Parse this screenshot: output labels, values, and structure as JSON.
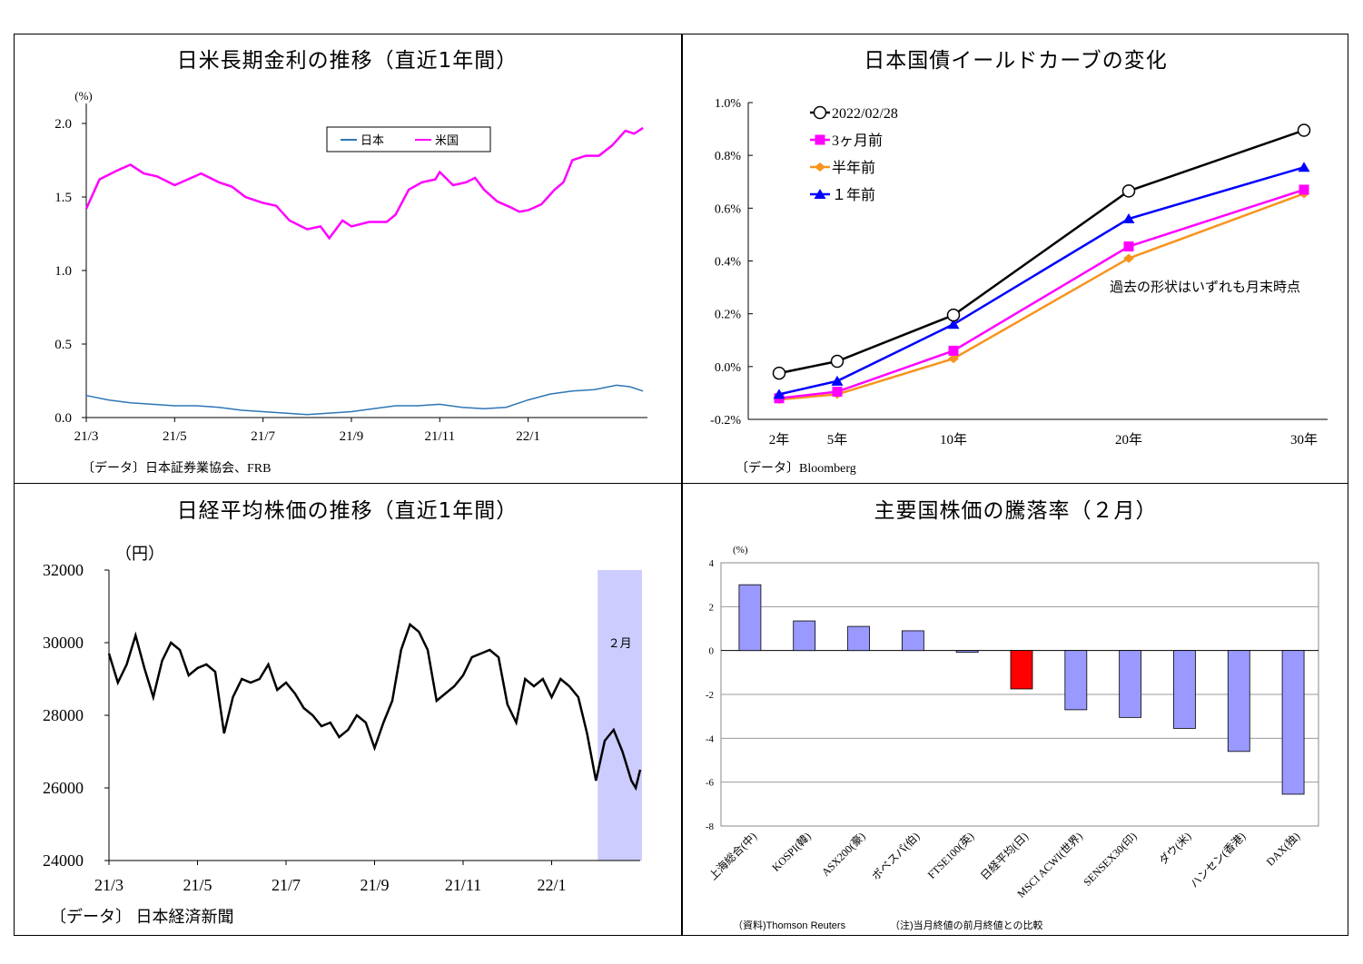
{
  "panels": {
    "tl": {
      "title": "日米長期金利の推移（直近1年間）",
      "source": "〔データ〕日本証券業協会、FRB"
    },
    "tr": {
      "title": "日本国債イールドカーブの変化",
      "source": "〔データ〕Bloomberg",
      "note": "過去の形状はいずれも月末時点"
    },
    "bl": {
      "title": "日経平均株価の推移（直近1年間）",
      "source": "〔データ〕 日本経済新聞",
      "band_label": "２月"
    },
    "br": {
      "title": "主要国株価の騰落率（２月）",
      "source": "（資料)Thomson Reuters",
      "note": "（注)当月終値の前月終値との比較"
    }
  },
  "chart_data": [
    {
      "type": "line",
      "title": "日米長期金利の推移（直近1年間）",
      "ylabel": "(%)",
      "ylim": [
        0,
        2.0
      ],
      "yticks": [
        "0.0",
        "0.5",
        "1.0",
        "1.5",
        "2.0"
      ],
      "xticks": [
        "21/3",
        "21/5",
        "21/7",
        "21/9",
        "21/11",
        "22/1"
      ],
      "legend": "top-right",
      "colors": {
        "日本": "#2e75b6",
        "米国": "#ff00ff"
      },
      "series": [
        {
          "name": "日本",
          "points": [
            [
              0,
              0.15
            ],
            [
              0.5,
              0.12
            ],
            [
              1,
              0.1
            ],
            [
              1.5,
              0.09
            ],
            [
              2,
              0.08
            ],
            [
              2.5,
              0.08
            ],
            [
              3,
              0.07
            ],
            [
              3.5,
              0.05
            ],
            [
              4,
              0.04
            ],
            [
              4.5,
              0.03
            ],
            [
              5,
              0.02
            ],
            [
              5.5,
              0.03
            ],
            [
              6,
              0.04
            ],
            [
              6.5,
              0.06
            ],
            [
              7,
              0.08
            ],
            [
              7.5,
              0.08
            ],
            [
              8,
              0.09
            ],
            [
              8.5,
              0.07
            ],
            [
              9,
              0.06
            ],
            [
              9.5,
              0.07
            ],
            [
              10,
              0.12
            ],
            [
              10.5,
              0.16
            ],
            [
              11,
              0.18
            ],
            [
              11.5,
              0.19
            ],
            [
              12,
              0.22
            ],
            [
              12.3,
              0.21
            ],
            [
              12.6,
              0.18
            ]
          ]
        },
        {
          "name": "米国",
          "points": [
            [
              0,
              1.42
            ],
            [
              0.3,
              1.62
            ],
            [
              0.7,
              1.68
            ],
            [
              1,
              1.72
            ],
            [
              1.3,
              1.66
            ],
            [
              1.6,
              1.64
            ],
            [
              2,
              1.58
            ],
            [
              2.3,
              1.62
            ],
            [
              2.6,
              1.66
            ],
            [
              3,
              1.6
            ],
            [
              3.3,
              1.57
            ],
            [
              3.6,
              1.5
            ],
            [
              4,
              1.46
            ],
            [
              4.3,
              1.44
            ],
            [
              4.6,
              1.34
            ],
            [
              5,
              1.28
            ],
            [
              5.3,
              1.3
            ],
            [
              5.5,
              1.22
            ],
            [
              5.8,
              1.34
            ],
            [
              6,
              1.3
            ],
            [
              6.4,
              1.33
            ],
            [
              6.8,
              1.33
            ],
            [
              7,
              1.38
            ],
            [
              7.3,
              1.55
            ],
            [
              7.6,
              1.6
            ],
            [
              7.9,
              1.62
            ],
            [
              8,
              1.67
            ],
            [
              8.3,
              1.58
            ],
            [
              8.6,
              1.6
            ],
            [
              8.8,
              1.63
            ],
            [
              9,
              1.55
            ],
            [
              9.3,
              1.47
            ],
            [
              9.6,
              1.43
            ],
            [
              9.8,
              1.4
            ],
            [
              10,
              1.41
            ],
            [
              10.3,
              1.45
            ],
            [
              10.6,
              1.55
            ],
            [
              10.8,
              1.6
            ],
            [
              11,
              1.75
            ],
            [
              11.3,
              1.78
            ],
            [
              11.6,
              1.78
            ],
            [
              11.9,
              1.85
            ],
            [
              12.2,
              1.95
            ],
            [
              12.4,
              1.93
            ],
            [
              12.6,
              1.97
            ]
          ]
        }
      ],
      "x_domain": [
        0,
        12.7
      ]
    },
    {
      "type": "line",
      "title": "日本国債イールドカーブの変化",
      "ylim": [
        -0.2,
        1.0
      ],
      "yticks": [
        "-0.2%",
        "0.0%",
        "0.2%",
        "0.4%",
        "0.6%",
        "0.8%",
        "1.0%"
      ],
      "categories": [
        "2年",
        "5年",
        "10年",
        "20年",
        "30年"
      ],
      "x": [
        2,
        5,
        10,
        20,
        30
      ],
      "legend": "top-left",
      "series": [
        {
          "name": "2022/02/28",
          "color": "#000000",
          "marker": "circle",
          "values": [
            -0.025,
            0.02,
            0.195,
            0.665,
            0.895
          ]
        },
        {
          "name": "3ヶ月前",
          "color": "#ff00ff",
          "marker": "square",
          "values": [
            -0.12,
            -0.095,
            0.06,
            0.455,
            0.67
          ]
        },
        {
          "name": "半年前",
          "color": "#f7941d",
          "marker": "diamond",
          "values": [
            -0.125,
            -0.105,
            0.03,
            0.41,
            0.655
          ]
        },
        {
          "name": "１年前",
          "color": "#0000ff",
          "marker": "triangle",
          "values": [
            -0.105,
            -0.055,
            0.16,
            0.56,
            0.755
          ]
        }
      ]
    },
    {
      "type": "line",
      "title": "日経平均株価の推移（直近1年間）",
      "ylabel": "（円）",
      "ylim": [
        24000,
        32000
      ],
      "yticks": [
        "24000",
        "26000",
        "28000",
        "30000",
        "32000"
      ],
      "xticks": [
        "21/3",
        "21/5",
        "21/7",
        "21/9",
        "21/11",
        "22/1"
      ],
      "band": {
        "from": 11.0,
        "to": 12.0,
        "color": "#ccccff"
      },
      "series": [
        {
          "name": "日経平均",
          "color": "#000000",
          "points": [
            [
              0,
              29700
            ],
            [
              0.2,
              28900
            ],
            [
              0.4,
              29400
            ],
            [
              0.6,
              30200
            ],
            [
              0.8,
              29300
            ],
            [
              1,
              28500
            ],
            [
              1.2,
              29500
            ],
            [
              1.4,
              30000
            ],
            [
              1.6,
              29800
            ],
            [
              1.8,
              29100
            ],
            [
              2,
              29300
            ],
            [
              2.2,
              29400
            ],
            [
              2.4,
              29200
            ],
            [
              2.6,
              27500
            ],
            [
              2.8,
              28500
            ],
            [
              3,
              29000
            ],
            [
              3.2,
              28900
            ],
            [
              3.4,
              29000
            ],
            [
              3.6,
              29400
            ],
            [
              3.8,
              28700
            ],
            [
              4,
              28900
            ],
            [
              4.2,
              28600
            ],
            [
              4.4,
              28200
            ],
            [
              4.6,
              28000
            ],
            [
              4.8,
              27700
            ],
            [
              5,
              27800
            ],
            [
              5.2,
              27400
            ],
            [
              5.4,
              27600
            ],
            [
              5.6,
              28000
            ],
            [
              5.8,
              27800
            ],
            [
              6,
              27100
            ],
            [
              6.2,
              27800
            ],
            [
              6.4,
              28400
            ],
            [
              6.6,
              29800
            ],
            [
              6.8,
              30500
            ],
            [
              7,
              30300
            ],
            [
              7.2,
              29800
            ],
            [
              7.4,
              28400
            ],
            [
              7.6,
              28600
            ],
            [
              7.8,
              28800
            ],
            [
              8,
              29100
            ],
            [
              8.2,
              29600
            ],
            [
              8.4,
              29700
            ],
            [
              8.6,
              29800
            ],
            [
              8.8,
              29600
            ],
            [
              9,
              28300
            ],
            [
              9.2,
              27800
            ],
            [
              9.4,
              29000
            ],
            [
              9.6,
              28800
            ],
            [
              9.8,
              29000
            ],
            [
              10,
              28500
            ],
            [
              10.2,
              29000
            ],
            [
              10.4,
              28800
            ],
            [
              10.6,
              28500
            ],
            [
              10.8,
              27500
            ],
            [
              11,
              26200
            ],
            [
              11.2,
              27300
            ],
            [
              11.4,
              27600
            ],
            [
              11.6,
              27000
            ],
            [
              11.8,
              26200
            ],
            [
              11.9,
              26000
            ],
            [
              12,
              26500
            ]
          ]
        }
      ],
      "x_domain": [
        0,
        12.0
      ]
    },
    {
      "type": "bar",
      "title": "主要国株価の騰落率（２月）",
      "ylabel": "(%)",
      "ylim": [
        -8,
        4
      ],
      "yticks": [
        "-8",
        "-6",
        "-4",
        "-2",
        "0",
        "2",
        "4"
      ],
      "categories": [
        "上海総合(中)",
        "KOSPI(韓)",
        "ASX200(豪)",
        "ボベスパ(伯)",
        "FTSE100(英)",
        "日経平均(日)",
        "MSCI ACWI(世界)",
        "SENSEX30(印)",
        "ダウ(米)",
        "ハンセン(香港)",
        "DAX(独)"
      ],
      "values": [
        3.0,
        1.35,
        1.1,
        0.9,
        -0.08,
        -1.75,
        -2.7,
        -3.05,
        -3.55,
        -4.6,
        -6.55
      ],
      "colors": {
        "default": "#9999ff",
        "highlight": "#ff0000"
      },
      "highlight_index": 5
    }
  ]
}
